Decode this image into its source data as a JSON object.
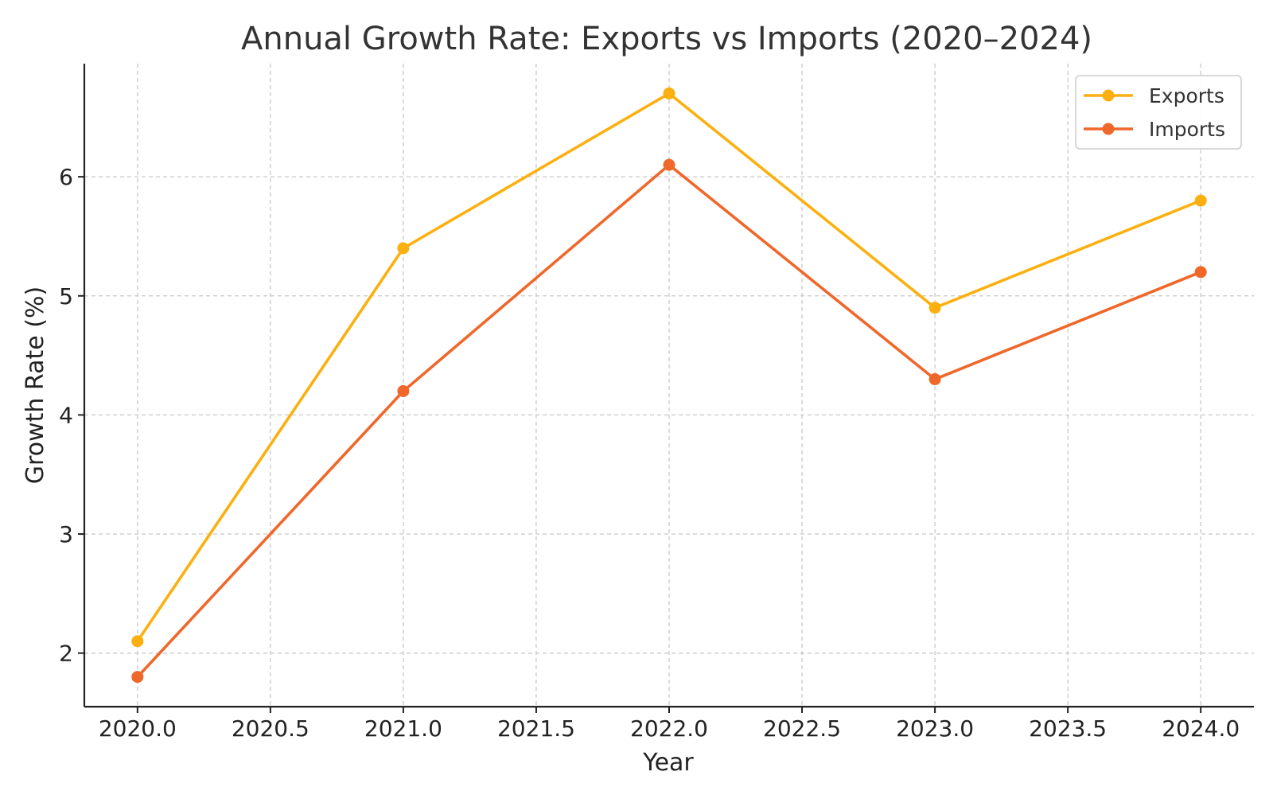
{
  "chart_data": {
    "type": "line",
    "title": "Annual Growth Rate: Exports vs Imports (2020–2024)",
    "xlabel": "Year",
    "ylabel": "Growth Rate (%)",
    "x": [
      2020,
      2021,
      2022,
      2023,
      2024
    ],
    "xlim": [
      2019.8,
      2024.2
    ],
    "ylim": [
      1.55,
      6.95
    ],
    "xticks": [
      2020.0,
      2020.5,
      2021.0,
      2021.5,
      2022.0,
      2022.5,
      2023.0,
      2023.5,
      2024.0
    ],
    "xtick_labels": [
      "2020.0",
      "2020.5",
      "2021.0",
      "2021.5",
      "2022.0",
      "2022.5",
      "2023.0",
      "2023.5",
      "2024.0"
    ],
    "yticks": [
      2,
      3,
      4,
      5,
      6
    ],
    "ytick_labels": [
      "2",
      "3",
      "4",
      "5",
      "6"
    ],
    "grid": true,
    "legend_position": "top-right",
    "series": [
      {
        "name": "Exports",
        "color": "#FBB010",
        "values": [
          2.1,
          5.4,
          6.7,
          4.9,
          5.8
        ]
      },
      {
        "name": "Imports",
        "color": "#F0672A",
        "values": [
          1.8,
          4.2,
          6.1,
          4.3,
          5.2
        ]
      }
    ]
  }
}
